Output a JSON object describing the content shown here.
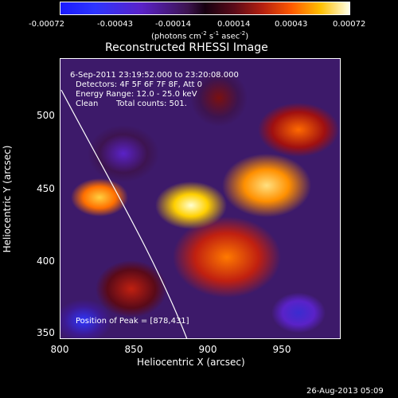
{
  "colorbar": {
    "ticks": [
      "-0.00072",
      "-0.00043",
      "-0.00014",
      "0.00014",
      "0.00043",
      "0.00072"
    ],
    "unit_label_pre": "(photons cm",
    "unit_exp1": "-2",
    "unit_mid1": " s",
    "unit_exp2": "-1",
    "unit_mid2": " asec",
    "unit_exp3": "-2",
    "unit_end": ")"
  },
  "title": "Reconstructed RHESSI Image",
  "info": {
    "time_range": "6-Sep-2011 23:19:52.000 to 23:20:08.000",
    "detectors": "Detectors: 4F 5F 6F 7F 8F, Att 0",
    "energy": "Energy Range: 12.0 - 25.0 keV",
    "algorithm": "Clean",
    "counts": "Total counts: 501.",
    "peak": "Position of Peak = [878,431]"
  },
  "axes": {
    "xlabel": "Heliocentric X (arcsec)",
    "ylabel": "Heliocentric Y (arcsec)",
    "xticks": [
      "800",
      "850",
      "900",
      "950"
    ],
    "yticks": [
      "500",
      "450",
      "400",
      "350"
    ]
  },
  "footer": "26-Aug-2013 05:09"
}
